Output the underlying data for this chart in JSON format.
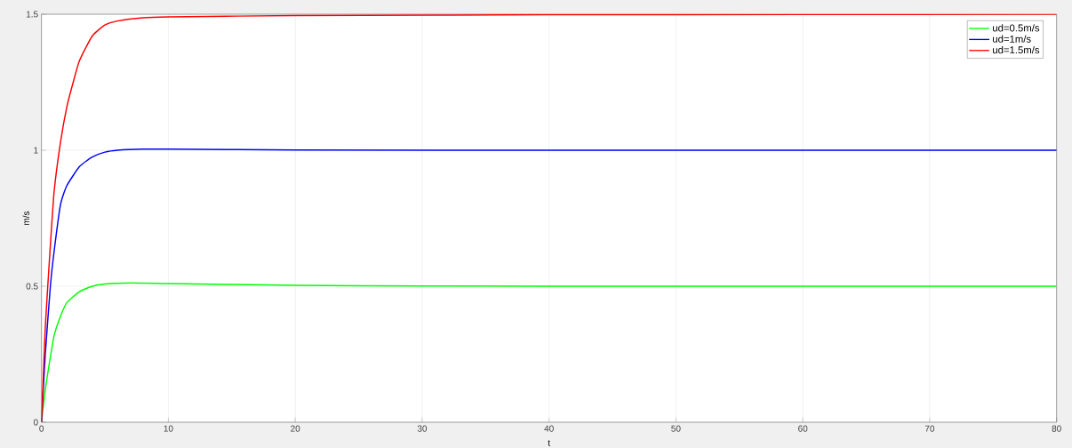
{
  "chart_data": {
    "type": "line",
    "xlabel": "t",
    "ylabel": "m/s",
    "xlim": [
      0,
      80
    ],
    "ylim": [
      0,
      1.5
    ],
    "xticks": [
      0,
      10,
      20,
      30,
      40,
      50,
      60,
      70,
      80
    ],
    "yticks": [
      0,
      0.5,
      1,
      1.5
    ],
    "grid": true,
    "legend": "top right",
    "series": [
      {
        "name": "ud=0.5m/s",
        "color": "#00ff00",
        "x": [
          0,
          0.3,
          0.7,
          1,
          1.5,
          2,
          3,
          4,
          5,
          7,
          10,
          20,
          30,
          40,
          80
        ],
        "values": [
          0,
          0.12,
          0.24,
          0.32,
          0.39,
          0.44,
          0.48,
          0.5,
          0.508,
          0.512,
          0.51,
          0.503,
          0.501,
          0.5,
          0.5
        ]
      },
      {
        "name": "ud=1m/s",
        "color": "#0000ff",
        "x": [
          0,
          0.3,
          0.7,
          1,
          1.5,
          2,
          3,
          4,
          5,
          6,
          8,
          10,
          20,
          40,
          80
        ],
        "values": [
          0,
          0.25,
          0.5,
          0.63,
          0.8,
          0.87,
          0.94,
          0.975,
          0.993,
          1.0,
          1.004,
          1.004,
          1.001,
          1.0,
          1.0
        ]
      },
      {
        "name": "ud=1.5m/s",
        "color": "#ff0000",
        "x": [
          0,
          0.3,
          0.7,
          1,
          1.5,
          2,
          2.5,
          3,
          4,
          5,
          6,
          8,
          10,
          20,
          40,
          80
        ],
        "values": [
          0,
          0.35,
          0.65,
          0.85,
          1.03,
          1.16,
          1.25,
          1.33,
          1.42,
          1.46,
          1.475,
          1.487,
          1.49,
          1.495,
          1.498,
          1.5
        ]
      }
    ]
  }
}
